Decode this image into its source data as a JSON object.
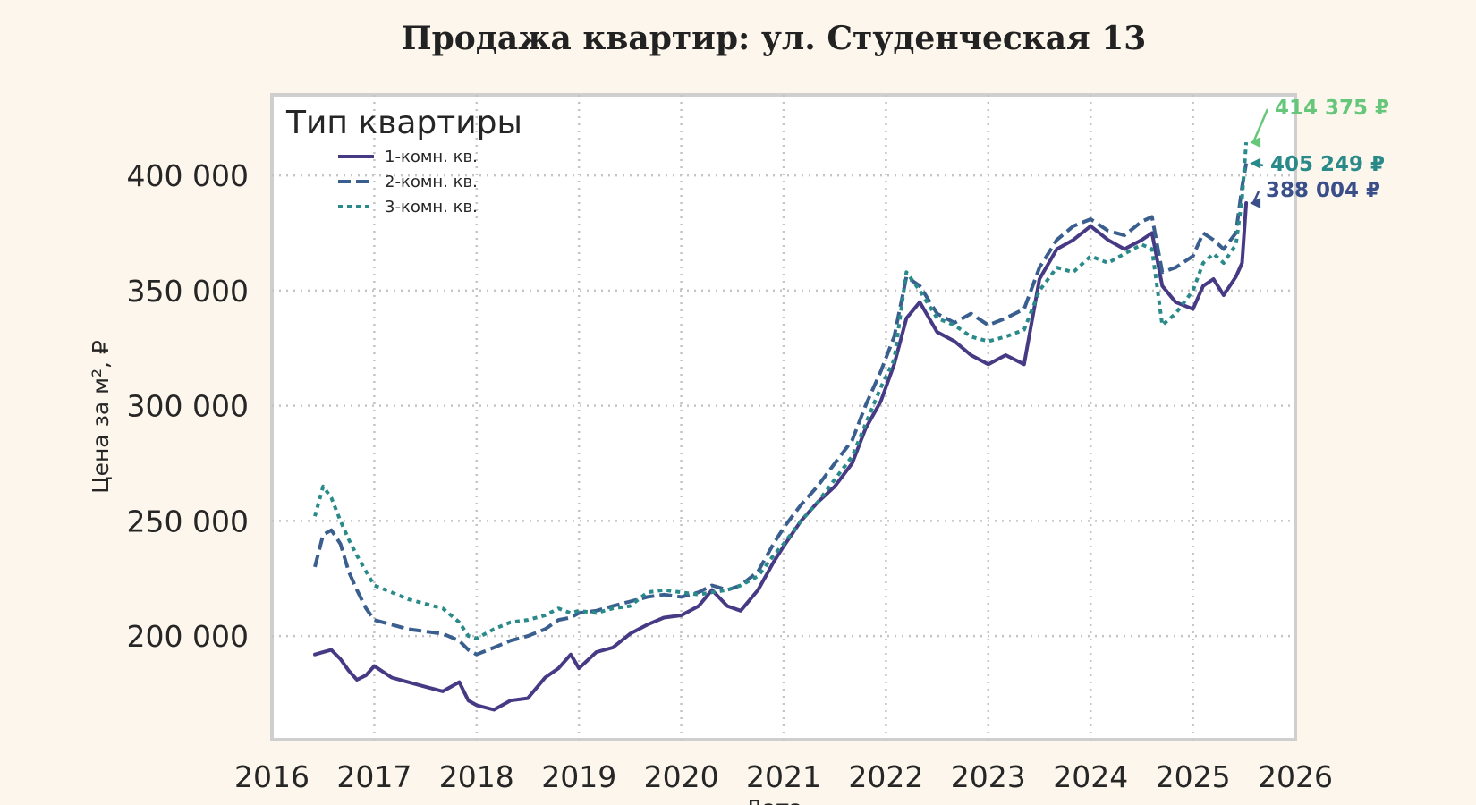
{
  "chart_data": {
    "type": "line",
    "title": "Продажа квартир: ул. Студенческая 13",
    "xlabel": "Дата",
    "ylabel": "Цена за м², ₽",
    "xlim": [
      2016,
      2026
    ],
    "ylim": [
      155000,
      435000
    ],
    "x_ticks": [
      2016,
      2017,
      2018,
      2019,
      2020,
      2021,
      2022,
      2023,
      2024,
      2025,
      2026
    ],
    "x_tick_labels": [
      "2016",
      "2017",
      "2018",
      "2019",
      "2020",
      "2021",
      "2022",
      "2023",
      "2024",
      "2025",
      "2026"
    ],
    "y_ticks": [
      200000,
      250000,
      300000,
      350000,
      400000
    ],
    "y_tick_labels": [
      "200 000",
      "250 000",
      "300 000",
      "350 000",
      "400 000"
    ],
    "grid": true,
    "legend": {
      "title": "Тип квартиры",
      "placement": "top-left"
    },
    "background": "#fdf6ec",
    "plot_background": "#ffffff",
    "series": [
      {
        "name": "1-комн. кв.",
        "color": "#473a85",
        "style": "solid",
        "x": [
          2016.42,
          2016.5,
          2016.58,
          2016.67,
          2016.75,
          2016.83,
          2016.92,
          2017.0,
          2017.17,
          2017.33,
          2017.5,
          2017.67,
          2017.83,
          2017.92,
          2018.0,
          2018.17,
          2018.33,
          2018.5,
          2018.67,
          2018.8,
          2018.92,
          2019.0,
          2019.17,
          2019.33,
          2019.5,
          2019.67,
          2019.83,
          2020.0,
          2020.17,
          2020.3,
          2020.45,
          2020.58,
          2020.75,
          2020.9,
          2021.0,
          2021.17,
          2021.33,
          2021.5,
          2021.67,
          2021.8,
          2021.95,
          2022.08,
          2022.2,
          2022.33,
          2022.5,
          2022.67,
          2022.83,
          2023.0,
          2023.17,
          2023.35,
          2023.5,
          2023.67,
          2023.83,
          2024.0,
          2024.17,
          2024.33,
          2024.5,
          2024.6,
          2024.7,
          2024.83,
          2025.0,
          2025.1,
          2025.2,
          2025.3,
          2025.42,
          2025.48,
          2025.52
        ],
        "y": [
          192000,
          193000,
          194000,
          190000,
          185000,
          181000,
          183000,
          187000,
          182000,
          180000,
          178000,
          176000,
          180000,
          172000,
          170000,
          168000,
          172000,
          173000,
          182000,
          186000,
          192000,
          186000,
          193000,
          195000,
          201000,
          205000,
          208000,
          209000,
          213000,
          220000,
          213000,
          211000,
          220000,
          232000,
          239000,
          250000,
          258000,
          265000,
          275000,
          290000,
          302000,
          318000,
          338000,
          345000,
          332000,
          328000,
          322000,
          318000,
          322000,
          318000,
          355000,
          368000,
          372000,
          378000,
          372000,
          368000,
          372000,
          375000,
          352000,
          345000,
          342000,
          352000,
          355000,
          348000,
          356000,
          362000,
          388004
        ]
      },
      {
        "name": "2-комн. кв.",
        "color": "#3a5f8f",
        "style": "dashed",
        "x": [
          2016.42,
          2016.5,
          2016.58,
          2016.67,
          2016.75,
          2016.83,
          2016.92,
          2017.0,
          2017.17,
          2017.33,
          2017.5,
          2017.67,
          2017.83,
          2017.92,
          2018.0,
          2018.17,
          2018.33,
          2018.5,
          2018.67,
          2018.8,
          2018.92,
          2019.0,
          2019.17,
          2019.33,
          2019.5,
          2019.67,
          2019.83,
          2020.0,
          2020.17,
          2020.3,
          2020.45,
          2020.58,
          2020.75,
          2020.9,
          2021.0,
          2021.17,
          2021.33,
          2021.5,
          2021.67,
          2021.8,
          2021.95,
          2022.08,
          2022.2,
          2022.33,
          2022.5,
          2022.67,
          2022.83,
          2023.0,
          2023.17,
          2023.35,
          2023.5,
          2023.67,
          2023.83,
          2024.0,
          2024.17,
          2024.33,
          2024.5,
          2024.6,
          2024.7,
          2024.83,
          2025.0,
          2025.1,
          2025.2,
          2025.3,
          2025.42,
          2025.48,
          2025.52
        ],
        "y": [
          230000,
          244000,
          246000,
          240000,
          228000,
          220000,
          212000,
          207000,
          205000,
          203000,
          202000,
          201000,
          198000,
          194000,
          192000,
          195000,
          198000,
          200000,
          203000,
          207000,
          208000,
          210000,
          211000,
          213000,
          215000,
          217000,
          218000,
          217000,
          219000,
          222000,
          220000,
          222000,
          228000,
          240000,
          247000,
          257000,
          265000,
          275000,
          285000,
          300000,
          315000,
          330000,
          356000,
          352000,
          340000,
          336000,
          340000,
          335000,
          338000,
          342000,
          360000,
          372000,
          378000,
          381000,
          376000,
          374000,
          380000,
          382000,
          358000,
          360000,
          365000,
          375000,
          372000,
          368000,
          375000,
          395000,
          405249
        ]
      },
      {
        "name": "3-комн. кв.",
        "color": "#2a8a8a",
        "style": "dotted",
        "x": [
          2016.42,
          2016.5,
          2016.58,
          2016.67,
          2016.75,
          2016.83,
          2016.92,
          2017.0,
          2017.17,
          2017.33,
          2017.5,
          2017.67,
          2017.83,
          2017.92,
          2018.0,
          2018.17,
          2018.33,
          2018.5,
          2018.67,
          2018.8,
          2018.92,
          2019.0,
          2019.17,
          2019.33,
          2019.5,
          2019.67,
          2019.83,
          2020.0,
          2020.17,
          2020.3,
          2020.45,
          2020.58,
          2020.75,
          2020.9,
          2021.0,
          2021.17,
          2021.33,
          2021.5,
          2021.67,
          2021.8,
          2021.95,
          2022.08,
          2022.2,
          2022.33,
          2022.5,
          2022.67,
          2022.83,
          2023.0,
          2023.17,
          2023.35,
          2023.5,
          2023.67,
          2023.83,
          2024.0,
          2024.17,
          2024.33,
          2024.5,
          2024.6,
          2024.7,
          2024.83,
          2025.0,
          2025.1,
          2025.2,
          2025.3,
          2025.42,
          2025.48,
          2025.52
        ],
        "y": [
          252000,
          265000,
          260000,
          250000,
          242000,
          235000,
          228000,
          222000,
          219000,
          216000,
          214000,
          212000,
          206000,
          200000,
          199000,
          203000,
          206000,
          207000,
          209000,
          212000,
          210000,
          211000,
          210000,
          212000,
          213000,
          219000,
          220000,
          219000,
          218000,
          219000,
          220000,
          222000,
          226000,
          235000,
          240000,
          250000,
          258000,
          268000,
          278000,
          292000,
          308000,
          320000,
          358000,
          350000,
          338000,
          335000,
          330000,
          328000,
          330000,
          333000,
          350000,
          360000,
          358000,
          365000,
          362000,
          366000,
          370000,
          368000,
          335000,
          340000,
          350000,
          362000,
          366000,
          362000,
          370000,
          390000,
          414375
        ]
      }
    ],
    "annotations": [
      {
        "text": "414 375 ₽",
        "color": "#66c77a",
        "x": 2025.52,
        "y": 414375
      },
      {
        "text": "405 249 ₽",
        "color": "#2a8a8a",
        "x": 2025.52,
        "y": 405249
      },
      {
        "text": "388 004 ₽",
        "color": "#3a4f8a",
        "x": 2025.52,
        "y": 388004
      }
    ]
  }
}
